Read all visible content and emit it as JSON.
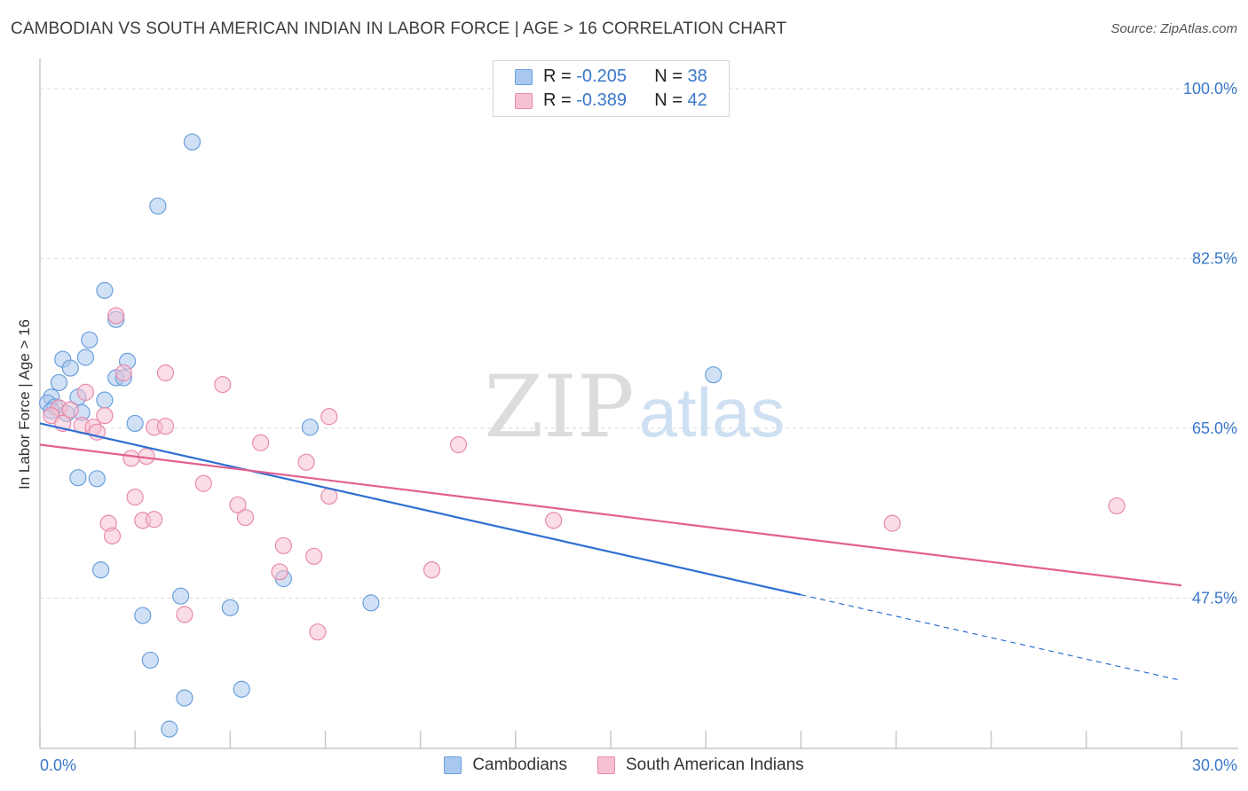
{
  "header": {
    "title": "CAMBODIAN VS SOUTH AMERICAN INDIAN IN LABOR FORCE | AGE > 16 CORRELATION CHART",
    "source": "Source: ZipAtlas.com"
  },
  "watermark": {
    "zip": "ZIP",
    "atlas": "atlas"
  },
  "stats": [
    {
      "r_label": "R =",
      "r_value": "-0.205",
      "n_label": "N =",
      "n_value": "38",
      "color": "#a9c8ef",
      "border": "#6a9fdc"
    },
    {
      "r_label": "R =",
      "r_value": "-0.389",
      "n_label": "N =",
      "n_value": "42",
      "color": "#f6c1d2",
      "border": "#e88aab"
    }
  ],
  "legend": [
    {
      "label": "Cambodians",
      "color": "#a9c8ef",
      "border": "#6a9fdc"
    },
    {
      "label": "South American Indians",
      "color": "#f6c1d2",
      "border": "#e88aab"
    }
  ],
  "chart_data": {
    "type": "scatter",
    "ylabel": "In Labor Force | Age > 16",
    "xlabel": "",
    "xlim": [
      0,
      30
    ],
    "ylim": [
      32,
      102
    ],
    "x_tick_labels": [
      "0.0%",
      "30.0%"
    ],
    "y_ticks": [
      47.5,
      65.0,
      82.5,
      100.0
    ],
    "y_tick_labels": [
      "47.5%",
      "65.0%",
      "82.5%",
      "100.0%"
    ],
    "grid": true,
    "series": [
      {
        "name": "Cambodians",
        "color": "#6a9fdc",
        "fill": "#a9c8ef",
        "line_color": "#2f6fd1",
        "trend": {
          "x_start": 0,
          "y_start": 65.5,
          "x_solid_end": 20.0,
          "x_end": 30,
          "y_end": 39.0
        },
        "points": [
          [
            4.0,
            94.5
          ],
          [
            3.1,
            87.9
          ],
          [
            1.7,
            79.2
          ],
          [
            2.0,
            76.2
          ],
          [
            1.3,
            74.1
          ],
          [
            0.6,
            72.1
          ],
          [
            1.2,
            72.3
          ],
          [
            2.3,
            71.9
          ],
          [
            0.8,
            71.2
          ],
          [
            2.0,
            70.2
          ],
          [
            2.2,
            70.2
          ],
          [
            0.5,
            69.7
          ],
          [
            0.3,
            68.2
          ],
          [
            1.7,
            67.9
          ],
          [
            1.0,
            68.2
          ],
          [
            0.2,
            67.6
          ],
          [
            0.4,
            67.2
          ],
          [
            0.3,
            66.8
          ],
          [
            0.7,
            66.5
          ],
          [
            1.1,
            66.6
          ],
          [
            2.5,
            65.5
          ],
          [
            7.1,
            65.1
          ],
          [
            17.7,
            70.5
          ],
          [
            1.0,
            59.9
          ],
          [
            1.5,
            59.8
          ],
          [
            1.6,
            50.4
          ],
          [
            3.7,
            47.7
          ],
          [
            5.0,
            46.5
          ],
          [
            6.4,
            49.5
          ],
          [
            8.7,
            47.0
          ],
          [
            2.7,
            45.7
          ],
          [
            2.9,
            41.1
          ],
          [
            3.8,
            37.2
          ],
          [
            5.3,
            38.1
          ],
          [
            3.4,
            34.0
          ]
        ]
      },
      {
        "name": "South American Indians",
        "color": "#e88aab",
        "fill": "#f6c1d2",
        "line_color": "#e2608f",
        "trend": {
          "x_start": 0,
          "y_start": 63.3,
          "x_end": 30,
          "y_end": 48.8
        },
        "points": [
          [
            2.0,
            76.6
          ],
          [
            3.3,
            70.7
          ],
          [
            2.2,
            70.7
          ],
          [
            4.8,
            69.5
          ],
          [
            1.2,
            68.7
          ],
          [
            0.5,
            67.1
          ],
          [
            0.8,
            66.9
          ],
          [
            0.3,
            66.3
          ],
          [
            1.7,
            66.3
          ],
          [
            0.6,
            65.5
          ],
          [
            1.1,
            65.3
          ],
          [
            1.4,
            65.1
          ],
          [
            1.5,
            64.6
          ],
          [
            3.0,
            65.1
          ],
          [
            3.3,
            65.2
          ],
          [
            7.6,
            66.2
          ],
          [
            5.8,
            63.5
          ],
          [
            11.0,
            63.3
          ],
          [
            2.4,
            61.9
          ],
          [
            2.8,
            62.1
          ],
          [
            7.0,
            61.5
          ],
          [
            4.3,
            59.3
          ],
          [
            2.5,
            57.9
          ],
          [
            5.2,
            57.1
          ],
          [
            7.6,
            58.0
          ],
          [
            5.4,
            55.8
          ],
          [
            2.7,
            55.5
          ],
          [
            3.0,
            55.6
          ],
          [
            1.8,
            55.2
          ],
          [
            1.9,
            53.9
          ],
          [
            6.4,
            52.9
          ],
          [
            7.2,
            51.8
          ],
          [
            6.3,
            50.2
          ],
          [
            10.3,
            50.4
          ],
          [
            13.5,
            55.5
          ],
          [
            22.4,
            55.2
          ],
          [
            28.3,
            57.0
          ],
          [
            3.8,
            45.8
          ],
          [
            7.3,
            44.0
          ]
        ]
      }
    ]
  }
}
